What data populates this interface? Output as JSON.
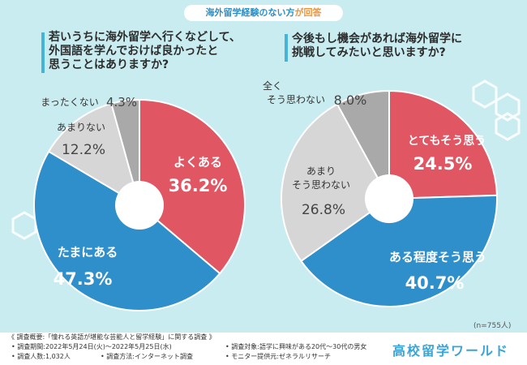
{
  "header": {
    "prefix": "海外留学経験のない方",
    "suffix": "が回答"
  },
  "questions": {
    "left": [
      "若いうちに海外留学へ行くなどして、",
      "外国語を学んでおけば良かったと",
      "思うことはありますか?"
    ],
    "right": [
      "今後もし機会があれば海外留学に",
      "挑戦してみたいと思いますか?"
    ]
  },
  "colors": {
    "red": "#e05663",
    "blue": "#2f8fcb",
    "light_gray": "#d6d6d6",
    "dark_gray": "#a9a9a9",
    "background": "#c9ecf1",
    "accent": "#46b3d9"
  },
  "chart_data": [
    {
      "type": "pie",
      "donut": true,
      "categories": [
        "よくある",
        "たまにある",
        "あまりない",
        "まったくない"
      ],
      "values": [
        36.2,
        47.3,
        12.2,
        4.3
      ],
      "value_labels": [
        "36.2%",
        "47.3%",
        "12.2%",
        "4.3%"
      ],
      "colors": [
        "#e05663",
        "#2f8fcb",
        "#d6d6d6",
        "#a9a9a9"
      ],
      "start": "top",
      "direction": "clockwise"
    },
    {
      "type": "pie",
      "donut": true,
      "categories": [
        "とてもそう思う",
        "ある程度そう思う",
        "あまりそう思わない",
        "全くそう思わない"
      ],
      "values": [
        24.5,
        40.7,
        26.8,
        8.0
      ],
      "value_labels": [
        "24.5%",
        "40.7%",
        "26.8%",
        "8.0%"
      ],
      "colors": [
        "#e05663",
        "#2f8fcb",
        "#d6d6d6",
        "#a9a9a9"
      ],
      "start": "top",
      "direction": "clockwise"
    }
  ],
  "labels": {
    "left": {
      "c1": "よくある",
      "c2": "たまにある",
      "c3": "あまりない",
      "c4": "まったくない",
      "v1": "36.2%",
      "v2": "47.3%",
      "v3": "12.2%",
      "v4": "4.3%"
    },
    "right": {
      "c1": "とてもそう思う",
      "c2": "ある程度そう思う",
      "c3a": "あまり",
      "c3b": "そう思わない",
      "c4a": "全く",
      "c4b": "そう思わない",
      "v1": "24.5%",
      "v2": "40.7%",
      "v3": "26.8%",
      "v4": "8.0%"
    }
  },
  "sample_size": "(n=755人)",
  "survey": {
    "title": "《 調査概要:「憧れる英語が堪能な芸能人と留学経験」に関する調査 》",
    "period": "• 調査期間:2022年5月24日(火)〜2022年5月25日(水)",
    "count": "• 調査人数:1,032人",
    "method": "• 調査方法:インターネット調査",
    "target": "• 調査対象:語学に興味がある20代〜30代の男女",
    "provider": "• モニター提供元:ゼネラルリサーチ"
  },
  "brand": "高校留学ワールド"
}
